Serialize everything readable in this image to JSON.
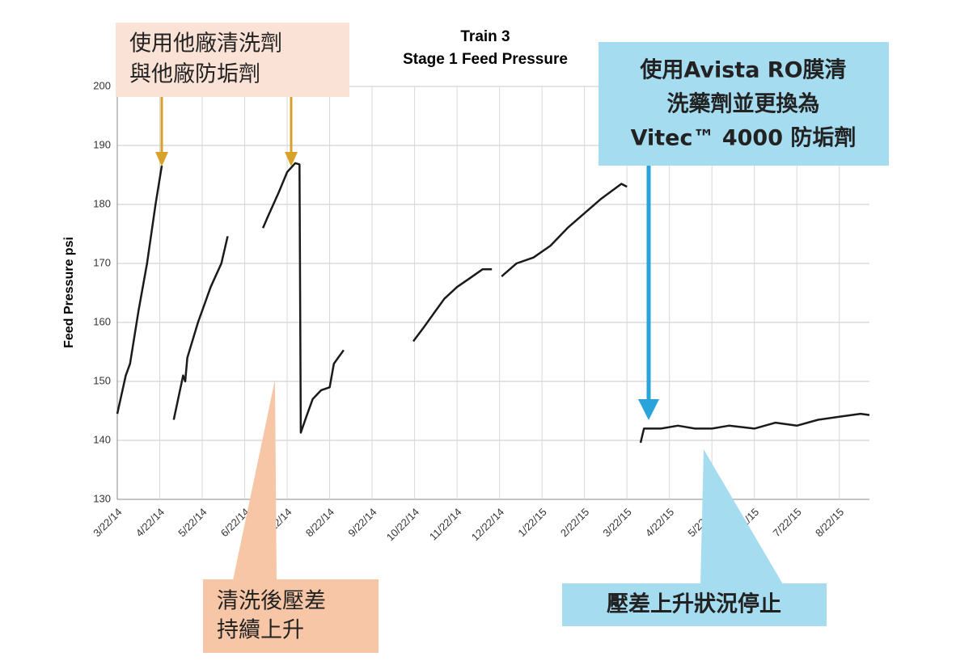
{
  "chart_data": {
    "type": "line",
    "title": [
      "Train 3",
      "Stage 1 Feed Pressure"
    ],
    "y_label": "Feed Pressure psi",
    "xlim": [
      0,
      17.71
    ],
    "xticks": [
      {
        "value": 0,
        "label": "3/22/14"
      },
      {
        "value": 1,
        "label": "4/22/14"
      },
      {
        "value": 2,
        "label": "5/22/14"
      },
      {
        "value": 3,
        "label": "6/22/14"
      },
      {
        "value": 4,
        "label": "7/22/14"
      },
      {
        "value": 5,
        "label": "8/22/14"
      },
      {
        "value": 6,
        "label": "9/22/14"
      },
      {
        "value": 7,
        "label": "10/22/14"
      },
      {
        "value": 8,
        "label": "11/22/14"
      },
      {
        "value": 9,
        "label": "12/22/14"
      },
      {
        "value": 10,
        "label": "1/22/15"
      },
      {
        "value": 11,
        "label": "2/22/15"
      },
      {
        "value": 12,
        "label": "3/22/15"
      },
      {
        "value": 13,
        "label": "4/22/15"
      },
      {
        "value": 14,
        "label": "5/22/15"
      },
      {
        "value": 15,
        "label": "6/22/15"
      },
      {
        "value": 16,
        "label": "7/22/15"
      },
      {
        "value": 17,
        "label": "8/22/15"
      }
    ],
    "ylim": [
      130,
      200
    ],
    "yticks": [
      130,
      140,
      150,
      160,
      170,
      180,
      190,
      200
    ],
    "grid": true,
    "series": [
      {
        "color": "#1a1a1a",
        "x": [
          0,
          0.2,
          0.3,
          0.5,
          0.7,
          0.9,
          1.05,
          1.2,
          1.33,
          1.55,
          1.6,
          1.65,
          1.9,
          2.2,
          2.45,
          2.6,
          3.0,
          3.43,
          3.55,
          3.8,
          4.0,
          4.19,
          4.29,
          4.32,
          4.45,
          4.6,
          4.8,
          5.0,
          5.1,
          5.33,
          6.0,
          6.97,
          7.2,
          7.5,
          7.7,
          8.0,
          8.3,
          8.6,
          8.82,
          8.95,
          9.05,
          9.4,
          9.8,
          10.2,
          10.6,
          11.0,
          11.4,
          11.87,
          12.0,
          12.2,
          12.32,
          12.4,
          12.8,
          13.2,
          13.6,
          14.0,
          14.4,
          15.0,
          15.5,
          16.0,
          16.5,
          17.0,
          17.5,
          17.71
        ],
        "values": [
          144.5,
          151,
          153,
          162,
          170,
          180,
          186.6,
          null,
          143.5,
          151,
          150,
          154,
          160,
          166,
          170,
          174.6,
          null,
          176,
          178,
          182,
          185.5,
          187,
          186.8,
          141.3,
          144,
          147,
          148.5,
          149,
          153,
          155.3,
          null,
          156.8,
          159,
          162,
          164,
          166,
          167.5,
          169,
          169,
          null,
          167.8,
          170,
          171,
          173,
          176,
          178.5,
          181,
          183.5,
          183,
          null,
          139.6,
          142,
          142,
          142.5,
          142,
          142,
          142.5,
          142,
          143,
          142.5,
          143.5,
          144,
          144.5,
          144.3
        ]
      }
    ],
    "annotations": [
      {
        "lines": [
          "使用他廠清洗劑",
          "與他廠防垢劑"
        ]
      },
      {
        "lines": [
          "清洗後壓差",
          "持續上升"
        ]
      },
      {
        "lines": [
          "使用Avista RO膜清",
          "洗藥劑並更換為",
          "Vitec™ 4000 防垢劑"
        ]
      },
      {
        "lines": [
          "壓差上升狀況停止"
        ]
      }
    ]
  }
}
